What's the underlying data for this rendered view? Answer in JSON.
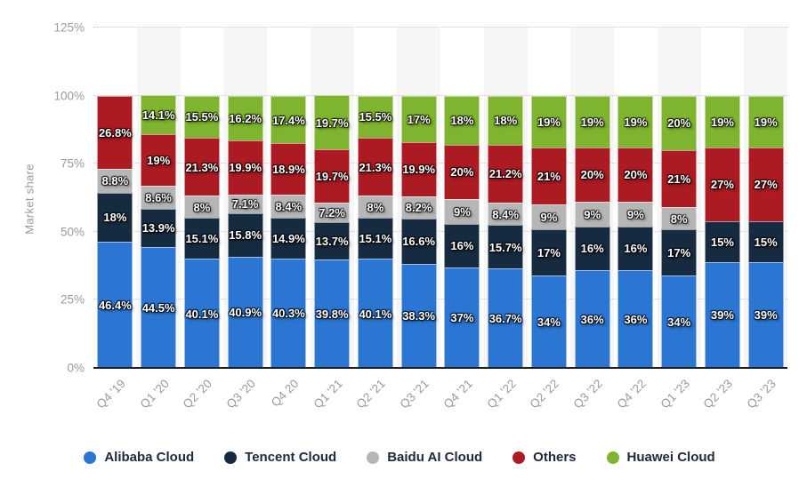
{
  "chart_data": {
    "type": "bar",
    "variant": "stacked-column",
    "title": "",
    "ylabel": "Market share",
    "ylim": [
      0,
      125
    ],
    "yticks": [
      0,
      25,
      50,
      75,
      100,
      125
    ],
    "ytick_labels": [
      "0%",
      "25%",
      "50%",
      "75%",
      "100%",
      "125%"
    ],
    "grid": "horizontal-dotted",
    "legend_position": "bottom",
    "categories": [
      "Q4 '19",
      "Q1 '20",
      "Q2 '20",
      "Q3 '20",
      "Q4 20",
      "Q1 '21",
      "Q2 '21",
      "Q3 '21",
      "Q4 '21",
      "Q1 '22",
      "Q2 '22",
      "Q3 '22",
      "Q4 '22",
      "Q1 '23",
      "Q2 '23",
      "Q3 '23"
    ],
    "series": [
      {
        "name": "Alibaba Cloud",
        "color": "#2b76d3",
        "values": [
          46.4,
          44.5,
          40.1,
          40.9,
          40.3,
          39.8,
          40.1,
          38.3,
          37,
          36.7,
          34,
          36,
          36,
          34,
          39,
          39
        ],
        "labels": [
          "46.4%",
          "44.5%",
          "40.1%",
          "40.9%",
          "40.3%",
          "39.8%",
          "40.1%",
          "38.3%",
          "37%",
          "36.7%",
          "34%",
          "36%",
          "36%",
          "34%",
          "39%",
          "39%"
        ]
      },
      {
        "name": "Tencent Cloud",
        "color": "#162b40",
        "values": [
          18,
          13.9,
          15.1,
          15.8,
          14.9,
          13.7,
          15.1,
          16.6,
          16,
          15.7,
          17,
          16,
          16,
          17,
          15,
          15
        ],
        "labels": [
          "18%",
          "13.9%",
          "15.1%",
          "15.8%",
          "14.9%",
          "13.7%",
          "15.1%",
          "16.6%",
          "16%",
          "15.7%",
          "17%",
          "16%",
          "16%",
          "17%",
          "15%",
          "15%"
        ]
      },
      {
        "name": "Baidu AI Cloud",
        "color": "#b6b6b6",
        "values": [
          8.8,
          8.6,
          8,
          7.1,
          8.4,
          7.2,
          8,
          8.2,
          9,
          8.4,
          9,
          9,
          9,
          8,
          0,
          0
        ],
        "labels": [
          "8.8%",
          "8.6%",
          "8%",
          "7.1%",
          "8.4%",
          "7.2%",
          "8%",
          "8.2%",
          "9%",
          "8.4%",
          "9%",
          "9%",
          "9%",
          "8%",
          "",
          ""
        ]
      },
      {
        "name": "Others",
        "color": "#ac1a22",
        "values": [
          26.8,
          19,
          21.3,
          19.9,
          18.9,
          19.7,
          21.3,
          19.9,
          20,
          21.2,
          21,
          20,
          20,
          21,
          27,
          27
        ],
        "labels": [
          "26.8%",
          "19%",
          "21.3%",
          "19.9%",
          "18.9%",
          "19.7%",
          "21.3%",
          "19.9%",
          "20%",
          "21.2%",
          "21%",
          "20%",
          "20%",
          "21%",
          "27%",
          "27%"
        ]
      },
      {
        "name": "Huawei Cloud",
        "color": "#7fb42e",
        "values": [
          0,
          14.1,
          15.5,
          16.2,
          17.4,
          19.7,
          15.5,
          17,
          18,
          18,
          19,
          19,
          19,
          20,
          19,
          19
        ],
        "labels": [
          "",
          "14.1%",
          "15.5%",
          "16.2%",
          "17.4%",
          "19.7%",
          "15.5%",
          "17%",
          "18%",
          "18%",
          "19%",
          "19%",
          "19%",
          "20%",
          "19%",
          "19%"
        ]
      }
    ],
    "style": {
      "stripe_color": "#f6f6f6",
      "gridline_color": "#c9c9c9",
      "axis_text_color": "#9b9b9b",
      "axis_line_color": "#1f1f1f",
      "legend_text_color": "#1b2a3f"
    }
  }
}
